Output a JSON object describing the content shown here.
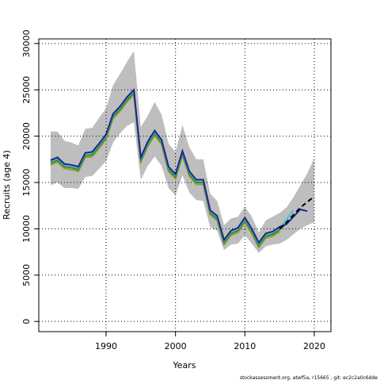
{
  "chart_data": {
    "type": "line",
    "xlabel": "Years",
    "ylabel": "Recruits (age 4)",
    "footnote": "stockassessment.org, atwf5a, r15665 , git: ec2c2a0c6dde",
    "x": [
      1982,
      1983,
      1984,
      1985,
      1986,
      1987,
      1988,
      1989,
      1990,
      1991,
      1992,
      1993,
      1994,
      1995,
      1996,
      1997,
      1998,
      1999,
      2000,
      2001,
      2002,
      2003,
      2004,
      2005,
      2006,
      2007,
      2008,
      2009,
      2010,
      2011,
      2012,
      2013,
      2014,
      2015,
      2016,
      2017,
      2018,
      2019,
      2020
    ],
    "band": {
      "color": "#bebebe",
      "upper": [
        20500,
        20500,
        19500,
        19300,
        19000,
        20800,
        20900,
        22000,
        23000,
        25500,
        26700,
        28000,
        29200,
        21000,
        22200,
        23700,
        22300,
        19200,
        18300,
        21200,
        18800,
        17500,
        17500,
        13800,
        13000,
        10400,
        11100,
        11300,
        12400,
        11300,
        9600,
        10900,
        11300,
        11700,
        12300,
        13400,
        14700,
        16000,
        17600
      ],
      "lower": [
        14700,
        15000,
        14400,
        14400,
        14300,
        15600,
        15700,
        16500,
        17300,
        19300,
        20300,
        21100,
        21500,
        15300,
        16800,
        17800,
        16800,
        14400,
        13600,
        15800,
        13900,
        13100,
        13000,
        10200,
        9800,
        7700,
        8300,
        8400,
        9300,
        8400,
        7400,
        8100,
        8300,
        8400,
        8800,
        9400,
        10000,
        10400,
        10700
      ]
    },
    "series": [
      {
        "color": "#9a9a2a",
        "values": [
          16900,
          17200,
          16500,
          16400,
          16200,
          17700,
          17800,
          18700,
          19700,
          21900,
          22700,
          23700,
          24500,
          17200,
          18900,
          20100,
          19100,
          16200,
          15400,
          17900,
          15700,
          14800,
          14800,
          11500,
          10900,
          8300,
          9300,
          9600,
          10700,
          9500,
          8000,
          9000,
          9200,
          9700,
          null,
          null,
          null,
          null,
          null
        ]
      },
      {
        "color": "#2e8b3a",
        "values": [
          17100,
          17400,
          16700,
          16600,
          16400,
          17900,
          18000,
          18900,
          19900,
          22100,
          22900,
          23900,
          24700,
          17400,
          19100,
          20300,
          19300,
          16400,
          15600,
          18100,
          15900,
          15000,
          15000,
          11700,
          11100,
          8500,
          9500,
          9800,
          10900,
          9700,
          8200,
          9200,
          9400,
          9900,
          10600,
          null,
          null,
          null,
          null
        ]
      },
      {
        "color": "#3cc8d8",
        "values": [
          17300,
          17600,
          16900,
          16800,
          16600,
          18100,
          18200,
          19100,
          20100,
          22300,
          23100,
          24100,
          24900,
          17600,
          19300,
          20500,
          19500,
          16600,
          15800,
          18300,
          16100,
          15200,
          15200,
          11900,
          11300,
          8700,
          9700,
          10000,
          11100,
          9900,
          8400,
          9400,
          9600,
          10100,
          11000,
          12000,
          null,
          null,
          null
        ]
      },
      {
        "color": "#22228a",
        "values": [
          17400,
          17700,
          17000,
          16900,
          16700,
          18200,
          18300,
          19200,
          20200,
          22400,
          23200,
          24200,
          25000,
          17700,
          19400,
          20600,
          19600,
          16700,
          15900,
          18400,
          16200,
          15300,
          15300,
          12000,
          11400,
          8800,
          9800,
          10100,
          11200,
          10000,
          8500,
          9500,
          9700,
          10200,
          10500,
          11300,
          12100,
          11900,
          null
        ]
      },
      {
        "color": "#000000",
        "dashed": true,
        "values": [
          null,
          null,
          null,
          null,
          null,
          null,
          null,
          null,
          null,
          null,
          null,
          null,
          null,
          null,
          null,
          null,
          null,
          null,
          null,
          null,
          null,
          null,
          null,
          null,
          null,
          null,
          null,
          null,
          null,
          null,
          null,
          null,
          null,
          10000,
          10700,
          11500,
          12300,
          12900,
          13500
        ]
      }
    ],
    "xlim": [
      1980.3,
      2022.4
    ],
    "ylim": [
      -1100,
      30500
    ],
    "xticks": [
      1990,
      2000,
      2010,
      2020
    ],
    "yticks": [
      0,
      5000,
      10000,
      15000,
      20000,
      25000,
      30000
    ],
    "grid": true
  }
}
